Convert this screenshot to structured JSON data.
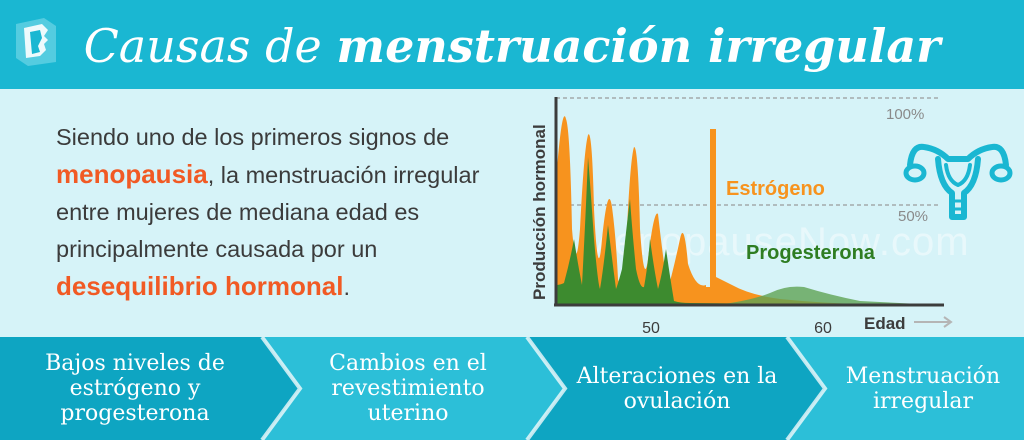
{
  "header": {
    "title_part1": "Causas de",
    "title_part2": "menstruación irregular"
  },
  "intro": {
    "text_1": "Siendo uno de los primeros signos de ",
    "highlight_1": "menopausia",
    "text_2": ", la menstruación irregular entre mujeres de mediana edad es principalmente causada por un ",
    "highlight_2": "desequilibrio hormonal",
    "text_3": "."
  },
  "chart_data": {
    "type": "area",
    "ylabel": "Producción hormonal",
    "xlabel": "Edad",
    "x_ticks": [
      "50",
      "60"
    ],
    "y_ticks": [
      "100%",
      "50%"
    ],
    "series": [
      {
        "name": "Estrógeno",
        "color": "#f7931e"
      },
      {
        "name": "Progesterona",
        "color": "#3a7d2c"
      }
    ]
  },
  "watermark": "MenopauseNow.com",
  "colors": {
    "header": "#1ab7d2",
    "background": "#d6f3f8",
    "highlight": "#f15a24",
    "estrogen": "#f7931e",
    "progesterone": "#3a7d2c",
    "steps_dark": "#0ea5c2",
    "steps_light": "#2cbfd8"
  },
  "icons": {
    "logo": "face-profile-logo",
    "uterus": "uterus-icon"
  },
  "steps": [
    {
      "label": "Bajos niveles de estrógeno y progesterona"
    },
    {
      "label": "Cambios en el revestimiento uterino"
    },
    {
      "label": "Alteraciones en la ovulación"
    },
    {
      "label": "Menstruación irregular"
    }
  ]
}
